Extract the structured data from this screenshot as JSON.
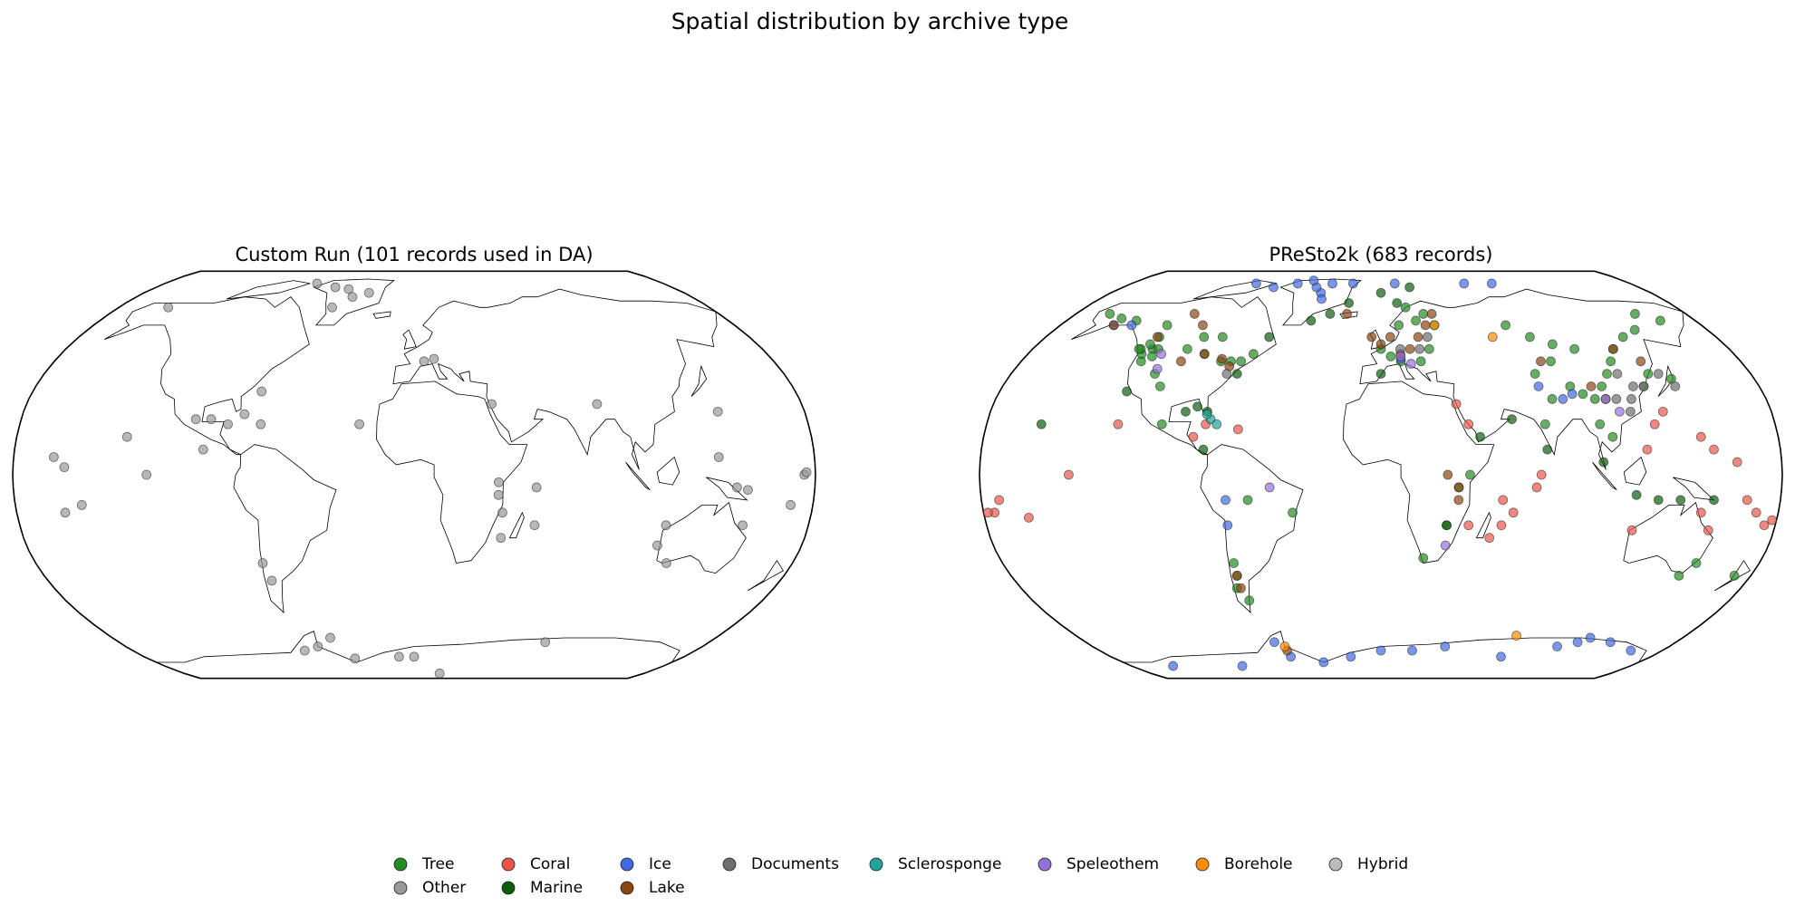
{
  "title": "Spatial distribution by archive type",
  "legend": [
    {
      "name": "Tree",
      "color": "#228b22"
    },
    {
      "name": "Other",
      "color": "#999999"
    },
    {
      "name": "Coral",
      "color": "#e8564a"
    },
    {
      "name": "Marine",
      "color": "#0b5e0b"
    },
    {
      "name": "Ice",
      "color": "#4169e1"
    },
    {
      "name": "Lake",
      "color": "#8b4513"
    },
    {
      "name": "Documents",
      "color": "#6e6e6e"
    },
    {
      "name": "Sclerosponge",
      "color": "#20a39a"
    },
    {
      "name": "Speleothem",
      "color": "#9370db"
    },
    {
      "name": "Borehole",
      "color": "#ff8c00"
    },
    {
      "name": "Hybrid",
      "color": "#bbbbbb"
    }
  ],
  "chart_data": [
    {
      "type": "map",
      "projection": "robinson",
      "title": "Custom Run (101 records used in DA)",
      "series": [
        {
          "x": [],
          "y": []
        },
        {
          "x": [
            -70,
            -55,
            -45,
            -40,
            -30,
            -50,
            -150,
            10,
            5,
            36,
            85,
            -72,
            -78,
            -85,
            -70,
            -100,
            -93,
            -25,
            -130,
            -95,
            -120,
            -162,
            -157,
            -158,
            -150,
            140,
            137,
            145,
            150,
            175,
            176,
            170,
            150,
            115,
            113,
            120,
            38,
            38,
            40,
            40,
            55,
            55,
            -72,
            -70,
            -70,
            -60,
            -50,
            -40,
            -10,
            0,
            20,
            80
          ],
          "y": [
            80,
            78,
            77,
            73,
            75,
            68,
            68,
            46,
            45,
            28,
            28,
            33,
            24,
            20,
            20,
            22,
            22,
            20,
            15,
            10,
            0,
            7,
            3,
            -15,
            -12,
            25,
            7,
            -5,
            -6,
            0,
            1,
            -12,
            -20,
            -20,
            -28,
            -35,
            -3,
            -8,
            -15,
            -25,
            -5,
            -20,
            -35,
            -42,
            -72,
            -70,
            -66,
            -76,
            -75,
            -75,
            -85,
            -68
          ]
        },
        {
          "x": [],
          "y": []
        },
        {
          "x": [],
          "y": []
        },
        {
          "x": [],
          "y": []
        },
        {
          "x": [],
          "y": []
        },
        {
          "x": [],
          "y": []
        },
        {
          "x": [],
          "y": []
        },
        {
          "x": [],
          "y": []
        },
        {
          "x": [],
          "y": []
        },
        {
          "x": [],
          "y": []
        }
      ]
    },
    {
      "type": "map",
      "projection": "robinson",
      "title": "PReSto2k (683 records)",
      "series": [
        {
          "x": [
            -120,
            -122,
            -118,
            -121,
            -116,
            -124,
            -119,
            -110,
            -105,
            -115,
            -125,
            -120,
            -140,
            -150,
            -160,
            -100,
            -90,
            -80,
            -75,
            -70,
            -65,
            -95,
            -85,
            10,
            20,
            25,
            15,
            30,
            0,
            5,
            10,
            20,
            25,
            70,
            80,
            90,
            100,
            85,
            75,
            90,
            95,
            100,
            105,
            110,
            115,
            120,
            130,
            140,
            150,
            160,
            125,
            130,
            140,
            80,
            100,
            105,
            75,
            -100,
            -70,
            -70,
            -72,
            -68,
            150,
            145,
            172,
            35,
            30,
            20,
            40,
            -60,
            -40
          ],
          "y": [
            45,
            48,
            50,
            52,
            47,
            50,
            55,
            40,
            35,
            50,
            50,
            60,
            62,
            63,
            65,
            50,
            48,
            45,
            45,
            45,
            48,
            55,
            55,
            60,
            62,
            65,
            68,
            60,
            50,
            47,
            45,
            45,
            50,
            60,
            55,
            52,
            50,
            45,
            40,
            35,
            32,
            30,
            35,
            40,
            45,
            50,
            55,
            58,
            65,
            62,
            35,
            40,
            38,
            30,
            20,
            15,
            20,
            20,
            -35,
            -40,
            -45,
            -50,
            -35,
            -40,
            -40,
            -5,
            -20,
            -33,
            0,
            -10,
            -15
          ]
        },
        {
          "x": [],
          "y": []
        },
        {
          "x": [
            -175,
            -172,
            -160,
            -120,
            -140,
            55,
            60,
            40,
            50,
            55,
            70,
            72,
            120,
            125,
            130,
            145,
            150,
            160,
            165,
            170,
            175,
            178,
            -178,
            150,
            145,
            115,
            40,
            35,
            -80,
            -65,
            -85
          ],
          "y": [
            -15,
            -10,
            -17,
            20,
            0,
            -10,
            -15,
            -20,
            -25,
            -20,
            -5,
            0,
            10,
            20,
            25,
            15,
            10,
            5,
            -10,
            -15,
            -20,
            -18,
            -15,
            -22,
            -15,
            -22,
            20,
            28,
            20,
            18,
            15
          ]
        },
        {
          "x": [
            -90,
            -85,
            -80,
            -70,
            -60,
            -40,
            -30,
            -20,
            0,
            20,
            10,
            60,
            45,
            30,
            100,
            115,
            125,
            135,
            150,
            -80,
            -120,
            -155,
            0,
            75
          ],
          "y": [
            25,
            27,
            25,
            40,
            55,
            62,
            65,
            70,
            75,
            78,
            70,
            22,
            15,
            -20,
            5,
            -8,
            -10,
            -10,
            -10,
            10,
            33,
            20,
            40,
            10
          ]
        },
        {
          "x": [
            -40,
            -38,
            -45,
            -35,
            -50,
            -60,
            -75,
            -90,
            -20,
            10,
            60,
            80,
            -65,
            -60,
            -40,
            -20,
            0,
            20,
            40,
            80,
            110,
            120,
            125,
            140,
            160,
            -100,
            -150,
            85,
            90,
            75,
            -70,
            -70,
            10,
            -150,
            -140
          ],
          "y": [
            75,
            72,
            78,
            80,
            82,
            80,
            78,
            80,
            80,
            80,
            80,
            80,
            -68,
            -75,
            -78,
            -75,
            -72,
            -72,
            -70,
            -75,
            -70,
            -68,
            -66,
            -68,
            -72,
            -80,
            -80,
            30,
            32,
            35,
            -10,
            -20,
            46,
            60,
            60
          ]
        },
        {
          "x": [
            -110,
            -100,
            -120,
            -90,
            -80,
            -75,
            -100,
            10,
            15,
            20,
            25,
            30,
            0,
            5,
            -5,
            -70,
            -70,
            35,
            35,
            30,
            100,
            105,
            120,
            130,
            80,
            -150,
            -60,
            -20
          ],
          "y": [
            65,
            60,
            55,
            48,
            46,
            43,
            45,
            48,
            50,
            55,
            60,
            65,
            52,
            55,
            55,
            -40,
            -45,
            -5,
            -10,
            0,
            35,
            30,
            50,
            45,
            45,
            60,
            -72,
            65
          ]
        },
        {
          "x": [
            115,
            117,
            120,
            115,
            125,
            110,
            140,
            135,
            20,
            25,
            -75,
            10
          ],
          "y": [
            25,
            30,
            35,
            40,
            35,
            30,
            35,
            40,
            50,
            55,
            40,
            50
          ]
        },
        {
          "x": [
            -78,
            -80,
            -75
          ],
          "y": [
            22,
            24,
            20
          ]
        },
        {
          "x": [
            -110,
            -112,
            10,
            15,
            30,
            110,
            105,
            -50
          ],
          "y": [
            42,
            48,
            47,
            44,
            -28,
            25,
            30,
            -5
          ]
        },
        {
          "x": [
            60,
            -60,
            80,
            30
          ],
          "y": [
            55,
            -70,
            -65,
            60
          ]
        },
        {
          "x": [],
          "y": []
        }
      ]
    }
  ]
}
